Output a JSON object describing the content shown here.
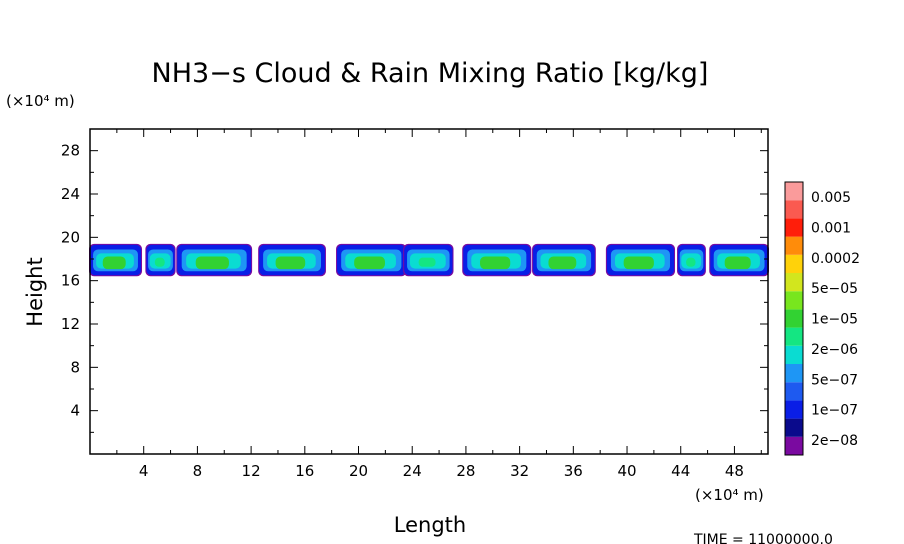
{
  "chart_data": {
    "type": "heatmap",
    "title": "NH3−s Cloud & Rain Mixing Ratio [kg/kg]",
    "xlabel": "Length",
    "ylabel": "Height",
    "x_unit": "(×10⁴ m)",
    "y_unit": "(×10⁴ m)",
    "xlim": [
      0,
      50.5
    ],
    "ylim": [
      0,
      30
    ],
    "x_ticks": [
      4,
      8,
      12,
      16,
      20,
      24,
      28,
      32,
      36,
      40,
      44,
      48
    ],
    "y_ticks": [
      4,
      8,
      12,
      16,
      20,
      24,
      28
    ],
    "x_tick_labels": [
      "4",
      "8",
      "12",
      "16",
      "20",
      "24",
      "28",
      "32",
      "36",
      "40",
      "44",
      "48"
    ],
    "y_tick_labels": [
      "4",
      "8",
      "12",
      "16",
      "20",
      "24",
      "28"
    ],
    "time_label": "TIME = 11000000.0",
    "colorbar": {
      "levels": [
        "0.005",
        "0.001",
        "0.0002",
        "5e−05",
        "1e−05",
        "2e−06",
        "5e−07",
        "1e−07",
        "2e−08"
      ],
      "colors": [
        "#7a0aa0",
        "#0a0a8c",
        "#0a1ee6",
        "#1e5af0",
        "#1e96f5",
        "#0adcd2",
        "#14e682",
        "#32d232",
        "#78e61e",
        "#d2e61e",
        "#ffd20a",
        "#ff8c0a",
        "#ff1e0a",
        "#fa5a50",
        "#fa9b9b"
      ]
    },
    "cloud_layer": {
      "height_range": [
        16.5,
        19.3
      ],
      "segments": [
        {
          "x0": 0.0,
          "x1": 3.8,
          "level": 8
        },
        {
          "x0": 4.2,
          "x1": 6.3,
          "level": 7
        },
        {
          "x0": 6.5,
          "x1": 12.0,
          "level": 8
        },
        {
          "x0": 12.6,
          "x1": 17.5,
          "level": 8
        },
        {
          "x0": 18.4,
          "x1": 23.5,
          "level": 8
        },
        {
          "x0": 23.4,
          "x1": 27.0,
          "level": 7
        },
        {
          "x0": 27.8,
          "x1": 32.8,
          "level": 8
        },
        {
          "x0": 33.0,
          "x1": 37.6,
          "level": 8
        },
        {
          "x0": 38.5,
          "x1": 43.5,
          "level": 8
        },
        {
          "x0": 43.8,
          "x1": 45.8,
          "level": 7
        },
        {
          "x0": 46.2,
          "x1": 50.5,
          "level": 8
        }
      ]
    }
  }
}
